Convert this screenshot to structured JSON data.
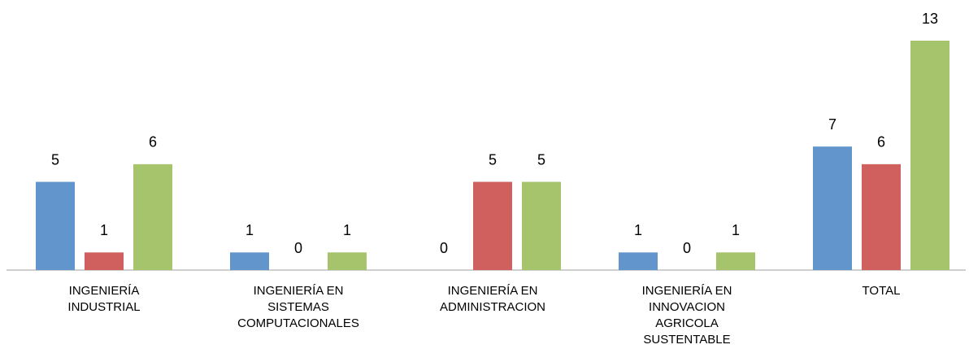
{
  "chart_data": {
    "type": "bar",
    "categories": [
      [
        "INGENIERÍA",
        "INDUSTRIAL"
      ],
      [
        "INGENIERÍA EN",
        "SISTEMAS",
        "COMPUTACIONALES"
      ],
      [
        "INGENIERÍA EN",
        "ADMINISTRACION"
      ],
      [
        "INGENIERÍA EN",
        "INNOVACION",
        "AGRICOLA",
        "SUSTENTABLE"
      ],
      [
        "TOTAL"
      ]
    ],
    "series": [
      {
        "color": "#6195cc",
        "values": [
          5,
          1,
          0,
          1,
          7
        ]
      },
      {
        "color": "#d0605d",
        "values": [
          1,
          0,
          5,
          0,
          6
        ]
      },
      {
        "color": "#a5c46b",
        "values": [
          6,
          1,
          5,
          1,
          13
        ]
      }
    ],
    "ylim": [
      0,
      13
    ]
  }
}
